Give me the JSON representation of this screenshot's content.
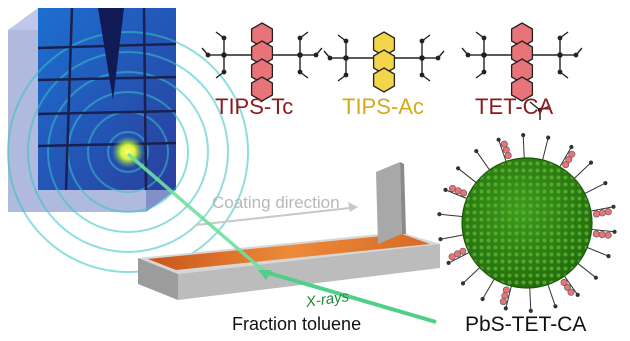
{
  "labels": {
    "tips_tc": "TIPS-Tc",
    "tips_ac": "TIPS-Ac",
    "tet_ca": "TET-CA",
    "coating_direction": "Coating direction",
    "xrays": "X-rays",
    "fraction": "Fraction toluene",
    "nanocrystal": "PbS-TET-CA"
  },
  "colors": {
    "tips_tc": "#8b1a1a",
    "tips_ac": "#d4a91c",
    "tet_ca": "#8b1a1a",
    "tetracene_ring": "#e8747a",
    "anthracene_ring": "#f2d54a",
    "film": "#e0761f",
    "xray_beam": "#4fd08a",
    "detector": "#3a5ab8",
    "nanocrystal_core": "#2e7a12"
  },
  "icons": {
    "detector": "xray-detector-block-icon",
    "substrate": "coated-substrate-icon",
    "blade": "coating-blade-icon",
    "nanocrystal": "nanocrystal-icon"
  }
}
